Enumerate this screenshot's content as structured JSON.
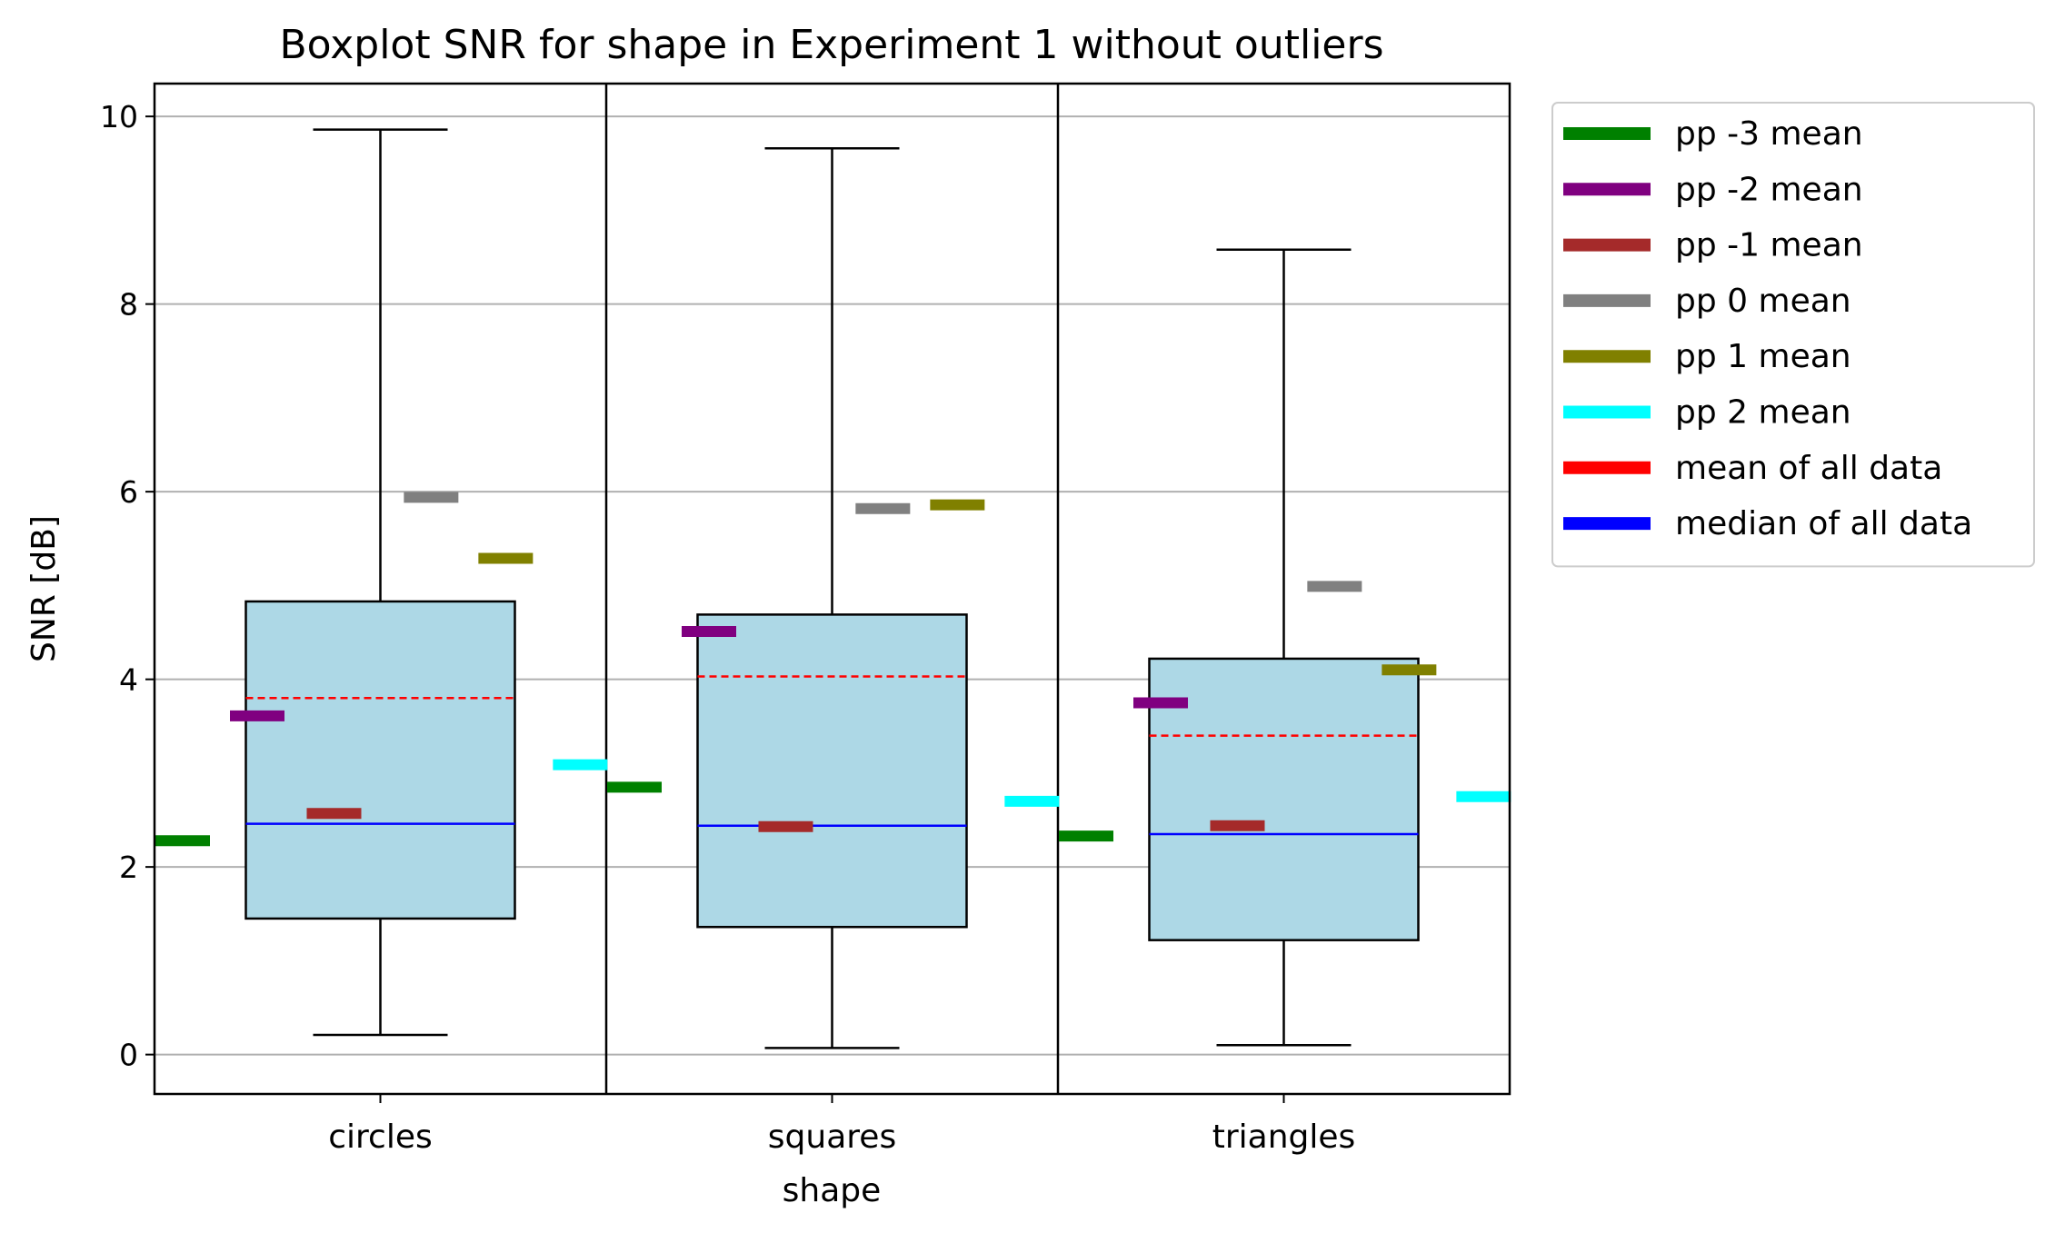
{
  "chart_data": {
    "type": "box",
    "title": "Boxplot SNR for shape in Experiment 1 without outliers",
    "xlabel": "shape",
    "ylabel": "SNR [dB]",
    "categories": [
      "circles",
      "squares",
      "triangles"
    ],
    "ylim": [
      -0.42,
      10.35
    ],
    "yticks": [
      0,
      2,
      4,
      6,
      8,
      10
    ],
    "grid": "y",
    "legend_position": "outside-right",
    "boxes": [
      {
        "category": "circles",
        "whisker_low": 0.21,
        "q1": 1.45,
        "median": 2.46,
        "mean": 3.8,
        "q3": 4.83,
        "whisker_high": 9.86
      },
      {
        "category": "squares",
        "whisker_low": 0.07,
        "q1": 1.36,
        "median": 2.44,
        "mean": 4.03,
        "q3": 4.69,
        "whisker_high": 9.66
      },
      {
        "category": "triangles",
        "whisker_low": 0.1,
        "q1": 1.22,
        "median": 2.35,
        "mean": 3.4,
        "q3": 4.22,
        "whisker_high": 8.58
      }
    ],
    "series": [
      {
        "name": "pp -3 mean",
        "color": "#008000",
        "values": [
          2.28,
          2.85,
          2.33
        ]
      },
      {
        "name": "pp -2 mean",
        "color": "#800080",
        "values": [
          3.61,
          4.51,
          3.75
        ]
      },
      {
        "name": "pp -1 mean",
        "color": "#a52a2a",
        "values": [
          2.57,
          2.43,
          2.44
        ]
      },
      {
        "name": "pp 0 mean",
        "color": "#808080",
        "values": [
          5.94,
          5.82,
          4.99
        ]
      },
      {
        "name": "pp 1 mean",
        "color": "#808000",
        "values": [
          5.29,
          5.86,
          4.1
        ]
      },
      {
        "name": "pp 2 mean",
        "color": "#00ffff",
        "values": [
          3.09,
          2.7,
          2.75
        ]
      }
    ],
    "reference_lines": [
      {
        "name": "mean of all data",
        "color": "#ff0000",
        "style": "dashed"
      },
      {
        "name": "median of all data",
        "color": "#0000ff",
        "style": "solid"
      }
    ],
    "box_fill": "#add8e6"
  }
}
